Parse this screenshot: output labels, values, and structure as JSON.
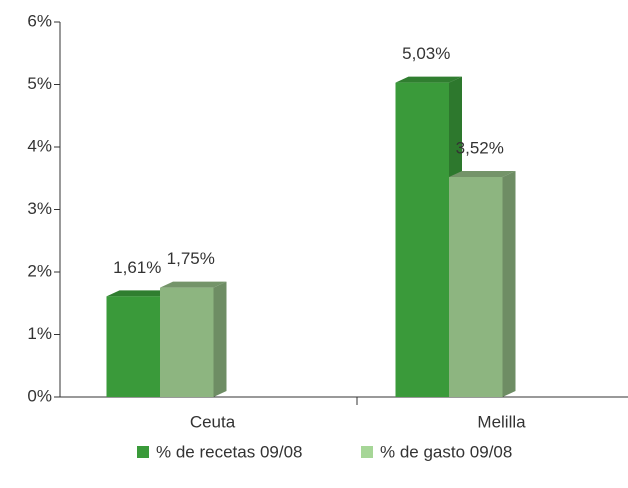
{
  "chart_data": {
    "type": "bar3d",
    "categories": [
      "Ceuta",
      "Melilla"
    ],
    "series": [
      {
        "name": "% de recetas 09/08",
        "color": "#3a9a3a",
        "values": [
          1.61,
          5.03
        ],
        "value_labels": [
          "1,61%",
          "5,03%"
        ]
      },
      {
        "name": "% de gasto 09/08",
        "color": "#8db580",
        "values": [
          1.75,
          3.52
        ],
        "value_labels": [
          "1,75%",
          "3,52%"
        ]
      }
    ],
    "ylim": [
      0,
      6
    ],
    "yticks": [
      {
        "value": 0,
        "label": "0%"
      },
      {
        "value": 1,
        "label": "1%"
      },
      {
        "value": 2,
        "label": "2%"
      },
      {
        "value": 3,
        "label": "3%"
      },
      {
        "value": 4,
        "label": "4%"
      },
      {
        "value": 5,
        "label": "5%"
      },
      {
        "value": 6,
        "label": "6%"
      }
    ],
    "legend": "bottom"
  }
}
